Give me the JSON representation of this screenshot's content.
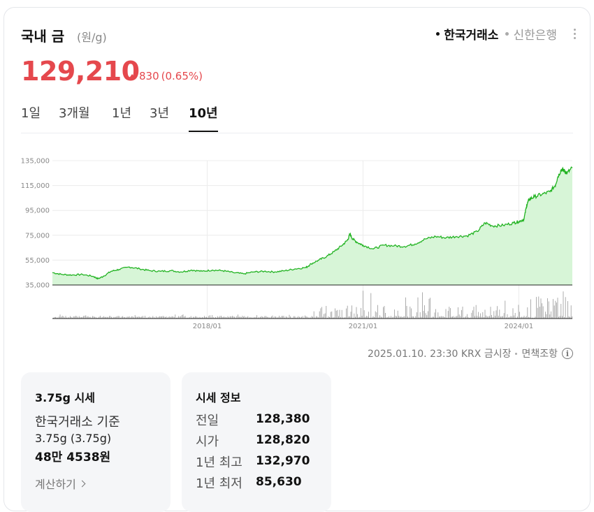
{
  "header": {
    "title": "국내 금",
    "unit": "(원/g)",
    "sources": [
      {
        "label": "한국거래소",
        "active": true
      },
      {
        "label": "신한은행",
        "active": false
      }
    ]
  },
  "price": {
    "value": "129,210",
    "change": "830",
    "change_pct": "(0.65%)",
    "direction": "up"
  },
  "tabs": [
    {
      "label": "1일",
      "active": false
    },
    {
      "label": "3개월",
      "active": false
    },
    {
      "label": "1년",
      "active": false
    },
    {
      "label": "3년",
      "active": false
    },
    {
      "label": "10년",
      "active": true
    }
  ],
  "chart_data": {
    "type": "area",
    "title": "",
    "xlabel": "",
    "ylabel": "",
    "ylim": [
      35000,
      135000
    ],
    "yticks": [
      "135,000",
      "115,000",
      "95,000",
      "75,000",
      "55,000",
      "35,000"
    ],
    "yticks_values": [
      135000,
      115000,
      95000,
      75000,
      55000,
      35000
    ],
    "xticks": [
      {
        "label": "2018/01",
        "year": 2018.0
      },
      {
        "label": "2021/01",
        "year": 2021.0
      },
      {
        "label": "2024/01",
        "year": 2024.0
      }
    ],
    "grid": true,
    "legend": "none",
    "colors": {
      "line": "#22b322",
      "fill": "#d7f5d7",
      "volume": "#999999"
    },
    "series": [
      {
        "name": "",
        "points": [
          [
            2015.02,
            45000
          ],
          [
            2015.2,
            43500
          ],
          [
            2015.4,
            43000
          ],
          [
            2015.6,
            43500
          ],
          [
            2015.8,
            42000
          ],
          [
            2015.9,
            40000
          ],
          [
            2016.0,
            42000
          ],
          [
            2016.15,
            46000
          ],
          [
            2016.3,
            47500
          ],
          [
            2016.5,
            49500
          ],
          [
            2016.7,
            48000
          ],
          [
            2016.9,
            46500
          ],
          [
            2017.1,
            46000
          ],
          [
            2017.3,
            46500
          ],
          [
            2017.5,
            45500
          ],
          [
            2017.7,
            47000
          ],
          [
            2017.9,
            46000
          ],
          [
            2018.1,
            47000
          ],
          [
            2018.3,
            46500
          ],
          [
            2018.5,
            45000
          ],
          [
            2018.7,
            44000
          ],
          [
            2018.9,
            45500
          ],
          [
            2019.1,
            46000
          ],
          [
            2019.3,
            45500
          ],
          [
            2019.5,
            46500
          ],
          [
            2019.7,
            48000
          ],
          [
            2019.9,
            49000
          ],
          [
            2020.0,
            52000
          ],
          [
            2020.15,
            55000
          ],
          [
            2020.3,
            58000
          ],
          [
            2020.45,
            62000
          ],
          [
            2020.6,
            67000
          ],
          [
            2020.7,
            71000
          ],
          [
            2020.75,
            76000
          ],
          [
            2020.8,
            72000
          ],
          [
            2020.9,
            69000
          ],
          [
            2021.0,
            67000
          ],
          [
            2021.2,
            64000
          ],
          [
            2021.4,
            67000
          ],
          [
            2021.6,
            66500
          ],
          [
            2021.8,
            66000
          ],
          [
            2022.0,
            68000
          ],
          [
            2022.2,
            72000
          ],
          [
            2022.4,
            74000
          ],
          [
            2022.6,
            73000
          ],
          [
            2022.8,
            74000
          ],
          [
            2023.0,
            74500
          ],
          [
            2023.2,
            78000
          ],
          [
            2023.35,
            85000
          ],
          [
            2023.5,
            82500
          ],
          [
            2023.7,
            83000
          ],
          [
            2023.9,
            85000
          ],
          [
            2024.0,
            86000
          ],
          [
            2024.1,
            88000
          ],
          [
            2024.15,
            99000
          ],
          [
            2024.2,
            104000
          ],
          [
            2024.3,
            106000
          ],
          [
            2024.45,
            108000
          ],
          [
            2024.6,
            110000
          ],
          [
            2024.7,
            115000
          ],
          [
            2024.75,
            122000
          ],
          [
            2024.82,
            128000
          ],
          [
            2024.87,
            127000
          ],
          [
            2024.93,
            125000
          ],
          [
            2025.03,
            129210
          ]
        ]
      }
    ]
  },
  "timestamp": {
    "text": "2025.01.10. 23:30 KRX 금시장",
    "disclaimer": "면책조항",
    "info_icon": "i"
  },
  "panel1": {
    "title": "3.75g 시세",
    "basis": "한국거래소 기준",
    "weight": "3.75g (3.75g)",
    "value": "48만 4538원",
    "calc": "계산하기"
  },
  "panel2": {
    "title": "시세 정보",
    "rows": [
      {
        "label": "전일",
        "value": "128,380"
      },
      {
        "label": "시가",
        "value": "128,820"
      },
      {
        "label": "1년 최고",
        "value": "132,970"
      },
      {
        "label": "1년 최저",
        "value": "85,630"
      }
    ]
  }
}
